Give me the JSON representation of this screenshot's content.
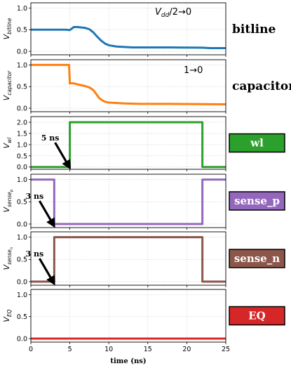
{
  "chart_data": [
    {
      "type": "line",
      "name": "bitline",
      "ylabel_main": "V",
      "ylabel_sub": "bitline",
      "yticks": [
        0.0,
        0.5,
        1.0
      ],
      "ylim": [
        -0.08,
        1.12
      ],
      "annotation": "V_dd/2→0",
      "annotation_main": "V",
      "annotation_sub": "dd",
      "annotation_rest": "/2→0",
      "side_label": "bitline",
      "color": "#1f77b4",
      "grid": true,
      "x": [
        0,
        3,
        4.5,
        5,
        5.5,
        6,
        6.5,
        7,
        7.5,
        8,
        8.5,
        9,
        9.5,
        10,
        11,
        12,
        13,
        15,
        18,
        22,
        23,
        25
      ],
      "y": [
        0.5,
        0.5,
        0.5,
        0.49,
        0.56,
        0.56,
        0.55,
        0.54,
        0.51,
        0.44,
        0.34,
        0.25,
        0.18,
        0.14,
        0.11,
        0.1,
        0.09,
        0.09,
        0.09,
        0.085,
        0.075,
        0.075
      ]
    },
    {
      "type": "line",
      "name": "capacitor",
      "ylabel_main": "V",
      "ylabel_sub": "capacitor",
      "yticks": [
        0.0,
        0.5,
        1.0
      ],
      "ylim": [
        -0.08,
        1.12
      ],
      "annotation": "1→0",
      "side_label": "capacitor",
      "color": "#ff7f0e",
      "grid": true,
      "x": [
        0,
        4.9,
        5,
        5.1,
        5.6,
        6,
        6.5,
        7,
        7.5,
        8,
        8.3,
        8.7,
        9,
        9.5,
        10,
        11,
        12,
        14,
        18,
        22,
        25
      ],
      "y": [
        1.0,
        1.0,
        0.57,
        0.58,
        0.57,
        0.55,
        0.53,
        0.51,
        0.48,
        0.42,
        0.35,
        0.25,
        0.2,
        0.15,
        0.13,
        0.12,
        0.11,
        0.1,
        0.1,
        0.095,
        0.09
      ]
    },
    {
      "type": "line",
      "name": "wl",
      "ylabel_main": "V",
      "ylabel_sub": "wl",
      "yticks": [
        0.0,
        0.5,
        1.0,
        1.5,
        2.0
      ],
      "ylim": [
        -0.1,
        2.25
      ],
      "side_label": "wl",
      "badge_color": "#2ca02c",
      "color": "#2ca02c",
      "grid": true,
      "arrow_label": "5 ns",
      "arrow_x": 5,
      "x": [
        0,
        5,
        5,
        22,
        22,
        25
      ],
      "y": [
        0,
        0,
        2,
        2,
        0,
        0
      ]
    },
    {
      "type": "line",
      "name": "sense_p",
      "ylabel_main": "V",
      "ylabel_sub": "sense_p",
      "yticks": [
        0.0,
        0.5,
        1.0
      ],
      "ylim": [
        -0.08,
        1.12
      ],
      "side_label": "sense_p",
      "badge_color": "#9467bd",
      "color": "#9467bd",
      "grid": true,
      "arrow_label": "3 ns",
      "arrow_x": 3,
      "x": [
        0,
        3,
        3,
        22,
        22,
        25
      ],
      "y": [
        1,
        1,
        0,
        0,
        1,
        1
      ]
    },
    {
      "type": "line",
      "name": "sense_n",
      "ylabel_main": "V",
      "ylabel_sub": "sense_n",
      "yticks": [
        0.0,
        0.5,
        1.0
      ],
      "ylim": [
        -0.08,
        1.12
      ],
      "side_label": "sense_n",
      "badge_color": "#8c564b",
      "color": "#8c564b",
      "grid": true,
      "arrow_label": "3 ns",
      "arrow_x": 3,
      "x": [
        0,
        3,
        3,
        22,
        22,
        25
      ],
      "y": [
        0,
        0,
        1,
        1,
        0,
        0
      ]
    },
    {
      "type": "line",
      "name": "EQ",
      "ylabel_main": "V",
      "ylabel_sub": "EQ",
      "yticks": [
        0.0,
        0.5,
        1.0
      ],
      "ylim": [
        -0.08,
        1.12
      ],
      "side_label": "EQ",
      "badge_color": "#d62728",
      "color": "#d62728",
      "grid": true,
      "x": [
        0,
        25
      ],
      "y": [
        0,
        0
      ]
    }
  ],
  "xaxis": {
    "label": "time (ns)",
    "ticks": [
      0,
      5,
      10,
      15,
      20,
      25
    ],
    "xlim": [
      0,
      25
    ]
  }
}
